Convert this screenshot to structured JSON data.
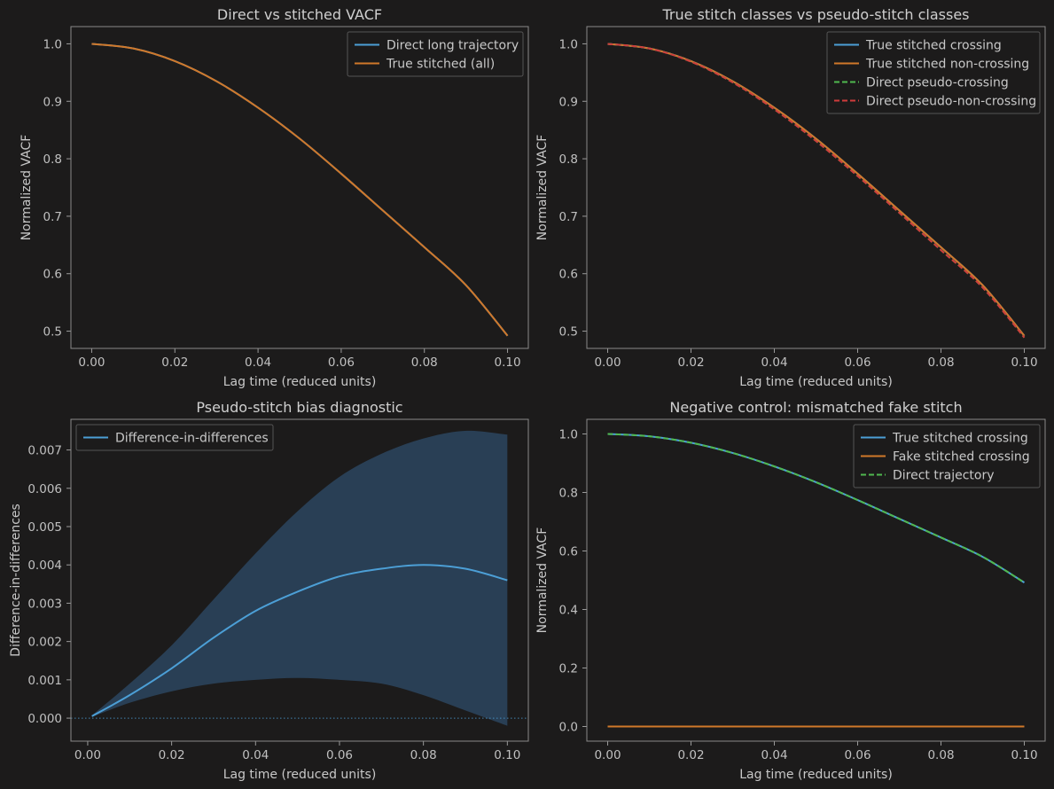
{
  "chart_data": [
    {
      "type": "line",
      "title": "Direct vs stitched VACF",
      "xlabel": "Lag time (reduced units)",
      "ylabel": "Normalized VACF",
      "xlim": [
        -0.005,
        0.105
      ],
      "ylim": [
        0.47,
        1.03
      ],
      "xticks": [
        0.0,
        0.02,
        0.04,
        0.06,
        0.08,
        0.1
      ],
      "xtick_labels": [
        "0.00",
        "0.02",
        "0.04",
        "0.06",
        "0.08",
        "0.10"
      ],
      "yticks": [
        0.5,
        0.6,
        0.7,
        0.8,
        0.9,
        1.0
      ],
      "ytick_labels": [
        "0.5",
        "0.6",
        "0.7",
        "0.8",
        "0.9",
        "1.0"
      ],
      "legend_position": "top-right",
      "x": [
        0.0,
        0.01,
        0.02,
        0.03,
        0.04,
        0.05,
        0.06,
        0.07,
        0.08,
        0.09,
        0.1
      ],
      "series": [
        {
          "name": "Direct long trajectory",
          "color": "#4c9fd6",
          "dash": "solid",
          "values": [
            1.0,
            0.992,
            0.97,
            0.935,
            0.889,
            0.835,
            0.774,
            0.71,
            0.646,
            0.58,
            0.492
          ]
        },
        {
          "name": "True stitched (all)",
          "color": "#d0782a",
          "dash": "solid",
          "values": [
            1.0,
            0.992,
            0.97,
            0.935,
            0.889,
            0.835,
            0.774,
            0.71,
            0.646,
            0.58,
            0.492
          ]
        }
      ]
    },
    {
      "type": "line",
      "title": "True stitch classes vs pseudo-stitch classes",
      "xlabel": "Lag time (reduced units)",
      "ylabel": "Normalized VACF",
      "xlim": [
        -0.005,
        0.105
      ],
      "ylim": [
        0.47,
        1.03
      ],
      "xticks": [
        0.0,
        0.02,
        0.04,
        0.06,
        0.08,
        0.1
      ],
      "xtick_labels": [
        "0.00",
        "0.02",
        "0.04",
        "0.06",
        "0.08",
        "0.10"
      ],
      "yticks": [
        0.5,
        0.6,
        0.7,
        0.8,
        0.9,
        1.0
      ],
      "ytick_labels": [
        "0.5",
        "0.6",
        "0.7",
        "0.8",
        "0.9",
        "1.0"
      ],
      "legend_position": "top-right",
      "x": [
        0.0,
        0.01,
        0.02,
        0.03,
        0.04,
        0.05,
        0.06,
        0.07,
        0.08,
        0.09,
        0.1
      ],
      "series": [
        {
          "name": "True stitched crossing",
          "color": "#4c9fd6",
          "dash": "solid",
          "values": [
            1.0,
            0.992,
            0.97,
            0.935,
            0.889,
            0.835,
            0.774,
            0.71,
            0.646,
            0.58,
            0.492
          ]
        },
        {
          "name": "True stitched non-crossing",
          "color": "#d0782a",
          "dash": "solid",
          "values": [
            1.0,
            0.992,
            0.97,
            0.935,
            0.889,
            0.835,
            0.774,
            0.71,
            0.646,
            0.58,
            0.492
          ]
        },
        {
          "name": "Direct pseudo-crossing",
          "color": "#4fb84f",
          "dash": "dashed",
          "values": [
            1.0,
            0.992,
            0.969,
            0.933,
            0.886,
            0.831,
            0.77,
            0.706,
            0.641,
            0.576,
            0.489
          ]
        },
        {
          "name": "Direct pseudo-non-crossing",
          "color": "#d03c3c",
          "dash": "dashed",
          "values": [
            1.0,
            0.992,
            0.969,
            0.933,
            0.886,
            0.831,
            0.77,
            0.706,
            0.641,
            0.576,
            0.489
          ]
        }
      ]
    },
    {
      "type": "line",
      "title": "Pseudo-stitch bias diagnostic",
      "xlabel": "Lag time (reduced units)",
      "ylabel": "Difference-in-differences",
      "xlim": [
        -0.004,
        0.105
      ],
      "ylim": [
        -0.0006,
        0.0078
      ],
      "xticks": [
        0.0,
        0.02,
        0.04,
        0.06,
        0.08,
        0.1
      ],
      "xtick_labels": [
        "0.00",
        "0.02",
        "0.04",
        "0.06",
        "0.08",
        "0.10"
      ],
      "yticks": [
        0.0,
        0.001,
        0.002,
        0.003,
        0.004,
        0.005,
        0.006,
        0.007
      ],
      "ytick_labels": [
        "0.000",
        "0.001",
        "0.002",
        "0.003",
        "0.004",
        "0.005",
        "0.006",
        "0.007"
      ],
      "legend_position": "top-left",
      "reference_line": 0.0,
      "x": [
        0.001,
        0.01,
        0.02,
        0.03,
        0.04,
        0.05,
        0.06,
        0.07,
        0.08,
        0.09,
        0.1
      ],
      "series": [
        {
          "name": "Difference-in-differences",
          "color": "#4c9fd6",
          "dash": "solid",
          "values": [
            5e-05,
            0.0006,
            0.0013,
            0.0021,
            0.0028,
            0.0033,
            0.0037,
            0.0039,
            0.004,
            0.0039,
            0.0036
          ],
          "band_lower": [
            3e-05,
            0.0004,
            0.0007,
            0.0009,
            0.001,
            0.00105,
            0.001,
            0.0009,
            0.0006,
            0.0002,
            -0.0002
          ],
          "band_upper": [
            7e-05,
            0.0009,
            0.0019,
            0.0031,
            0.0043,
            0.0054,
            0.0063,
            0.0069,
            0.0073,
            0.0075,
            0.0074
          ]
        }
      ]
    },
    {
      "type": "line",
      "title": "Negative control: mismatched fake stitch",
      "xlabel": "Lag time (reduced units)",
      "ylabel": "Normalized VACF",
      "xlim": [
        -0.005,
        0.105
      ],
      "ylim": [
        -0.05,
        1.05
      ],
      "xticks": [
        0.0,
        0.02,
        0.04,
        0.06,
        0.08,
        0.1
      ],
      "xtick_labels": [
        "0.00",
        "0.02",
        "0.04",
        "0.06",
        "0.08",
        "0.10"
      ],
      "yticks": [
        0.0,
        0.2,
        0.4,
        0.6,
        0.8,
        1.0
      ],
      "ytick_labels": [
        "0.0",
        "0.2",
        "0.4",
        "0.6",
        "0.8",
        "1.0"
      ],
      "legend_position": "top-right",
      "x": [
        0.0,
        0.01,
        0.02,
        0.03,
        0.04,
        0.05,
        0.06,
        0.07,
        0.08,
        0.09,
        0.1
      ],
      "series": [
        {
          "name": "True stitched crossing",
          "color": "#4c9fd6",
          "dash": "solid",
          "values": [
            1.0,
            0.992,
            0.97,
            0.935,
            0.889,
            0.835,
            0.774,
            0.71,
            0.646,
            0.58,
            0.492
          ]
        },
        {
          "name": "Fake stitched crossing",
          "color": "#d0782a",
          "dash": "solid",
          "values": [
            0.0,
            0.0,
            0.0,
            0.0,
            0.0,
            0.0,
            0.0,
            0.0,
            0.0,
            0.0,
            0.0
          ]
        },
        {
          "name": "Direct trajectory",
          "color": "#4fb84f",
          "dash": "dashed",
          "values": [
            1.0,
            0.992,
            0.97,
            0.935,
            0.889,
            0.835,
            0.774,
            0.71,
            0.646,
            0.58,
            0.492
          ]
        }
      ]
    }
  ]
}
